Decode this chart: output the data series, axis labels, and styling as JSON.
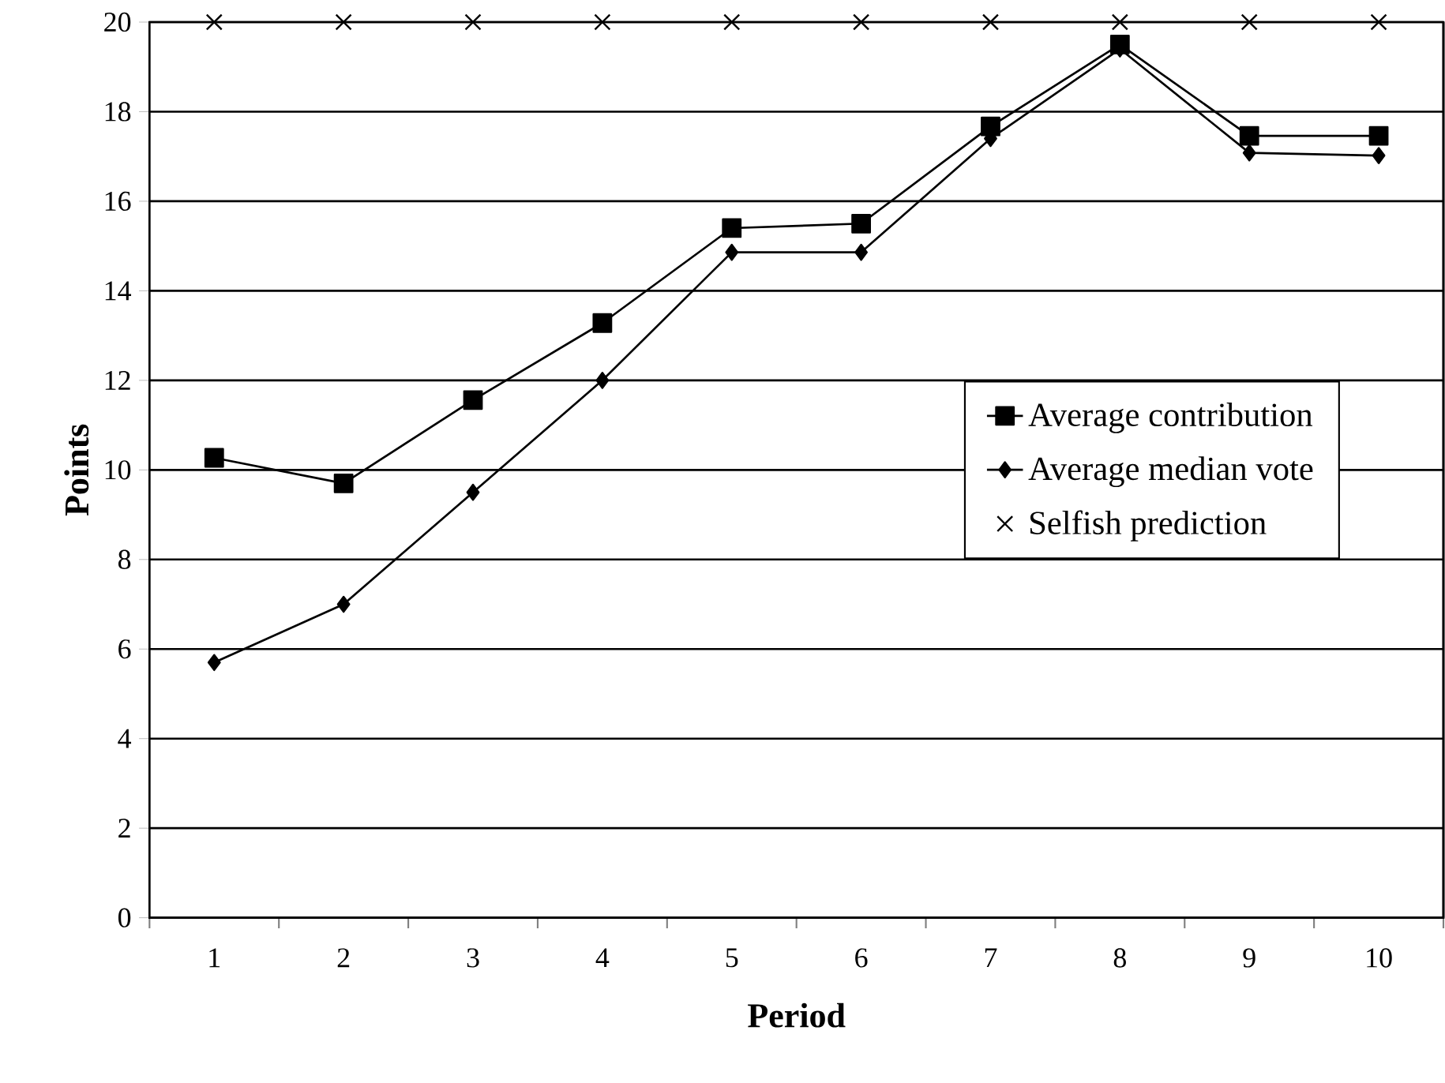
{
  "chart_data": {
    "type": "line",
    "xlabel": "Period",
    "ylabel": "Points",
    "categories": [
      "1",
      "2",
      "3",
      "4",
      "5",
      "6",
      "7",
      "8",
      "9",
      "10"
    ],
    "series": [
      {
        "name": "Average contribution",
        "color": "#000000",
        "marker": "square",
        "line_style": "solid",
        "values": [
          10.27,
          9.7,
          11.56,
          13.28,
          15.4,
          15.5,
          17.67,
          19.5,
          17.46,
          17.46
        ]
      },
      {
        "name": "Average median vote",
        "color": "#000000",
        "marker": "diamond",
        "line_style": "solid",
        "values": [
          5.7,
          7.0,
          9.5,
          12.0,
          14.86,
          14.86,
          17.4,
          19.4,
          17.08,
          17.02
        ]
      },
      {
        "name": "Selfish prediction",
        "type": "scatter",
        "color": "#000000",
        "marker": "cross",
        "values": [
          20,
          20,
          20,
          20,
          20,
          20,
          20,
          20,
          20,
          20
        ]
      }
    ],
    "ylim": [
      0,
      20
    ],
    "yticks": [
      0,
      2,
      4,
      6,
      8,
      10,
      12,
      14,
      16,
      18,
      20
    ],
    "grid": "y",
    "legend": "right"
  }
}
